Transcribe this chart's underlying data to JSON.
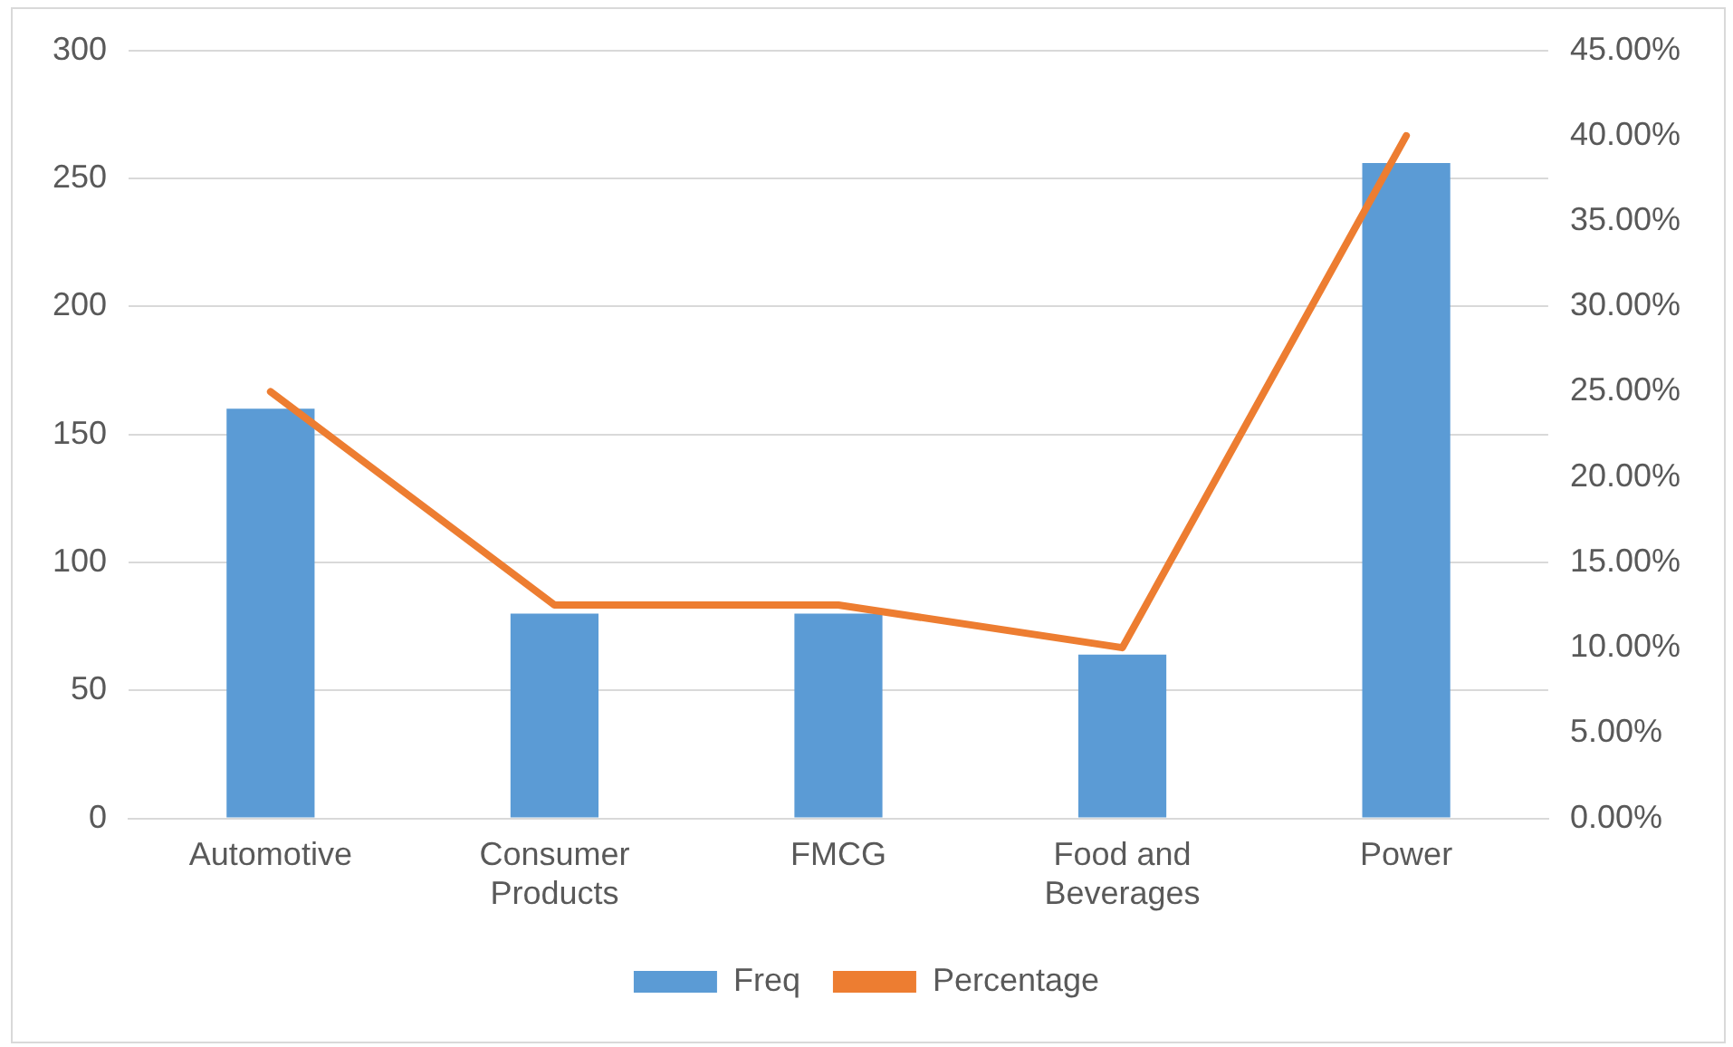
{
  "chart_data": {
    "type": "bar",
    "categories": [
      "Automotive",
      "Consumer Products",
      "FMCG",
      "Food and Beverages",
      "Power"
    ],
    "series": [
      {
        "name": "Freq",
        "color": "#5b9bd5",
        "values": [
          160,
          80,
          80,
          64,
          256
        ]
      },
      {
        "name": "Percentage",
        "type": "line",
        "axis": "y2",
        "color": "#ed7d31",
        "values": [
          25,
          12.5,
          12.5,
          10,
          40
        ]
      }
    ],
    "ylim": [
      0,
      300
    ],
    "yticks": [
      0,
      50,
      100,
      150,
      200,
      250,
      300
    ],
    "y2lim": [
      0,
      45
    ],
    "y2ticks": [
      {
        "value": 0,
        "label": "0.00%"
      },
      {
        "value": 5,
        "label": "5.00%"
      },
      {
        "value": 10,
        "label": "10.00%"
      },
      {
        "value": 15,
        "label": "15.00%"
      },
      {
        "value": 20,
        "label": "20.00%"
      },
      {
        "value": 25,
        "label": "25.00%"
      },
      {
        "value": 30,
        "label": "30.00%"
      },
      {
        "value": 35,
        "label": "35.00%"
      },
      {
        "value": 40,
        "label": "40.00%"
      },
      {
        "value": 45,
        "label": "45.00%"
      }
    ],
    "grid": "y",
    "legend": "bottom",
    "marker": "none"
  }
}
